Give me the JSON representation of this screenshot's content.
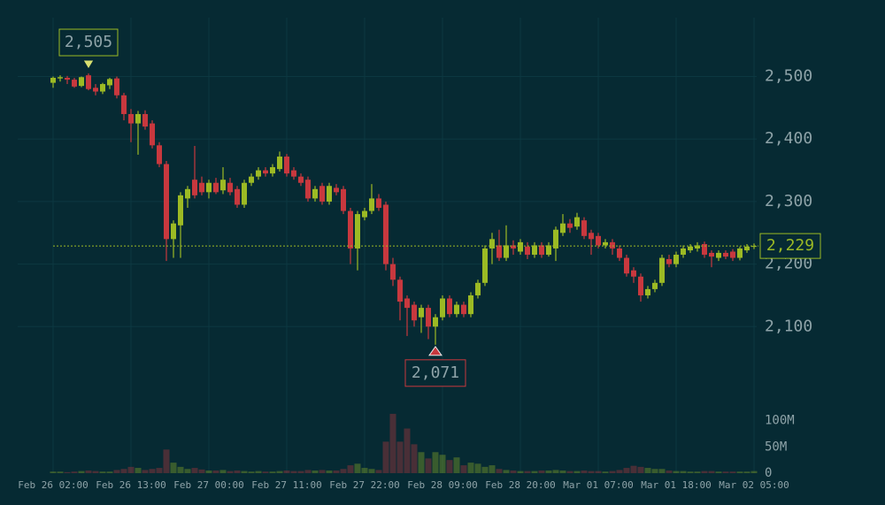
{
  "chart_data": {
    "type": "candlestick",
    "categories": [
      "Feb 26 02:00",
      null,
      null,
      null,
      null,
      null,
      null,
      null,
      null,
      null,
      null,
      "Feb 26 13:00",
      null,
      null,
      null,
      null,
      null,
      null,
      null,
      null,
      null,
      null,
      "Feb 27 00:00",
      null,
      null,
      null,
      null,
      null,
      null,
      null,
      null,
      null,
      null,
      "Feb 27 11:00",
      null,
      null,
      null,
      null,
      null,
      null,
      null,
      null,
      null,
      null,
      "Feb 27 22:00",
      null,
      null,
      null,
      null,
      null,
      null,
      null,
      null,
      null,
      null,
      "Feb 28 09:00",
      null,
      null,
      null,
      null,
      null,
      null,
      null,
      null,
      null,
      null,
      "Feb 28 20:00",
      null,
      null,
      null,
      null,
      null,
      null,
      null,
      null,
      null,
      null,
      "Mar 01 07:00",
      null,
      null,
      null,
      null,
      null,
      null,
      null,
      null,
      null,
      null,
      "Mar 01 18:00",
      null,
      null,
      null,
      null,
      null,
      null,
      null,
      null,
      null,
      null,
      "Mar 02 05:00"
    ],
    "ohlc": [
      [
        2490,
        2500,
        2482,
        2498
      ],
      [
        2497,
        2502,
        2492,
        2499
      ],
      [
        2498,
        2501,
        2488,
        2495
      ],
      [
        2495,
        2498,
        2482,
        2484
      ],
      [
        2485,
        2500,
        2483,
        2499
      ],
      [
        2502,
        2505,
        2478,
        2480
      ],
      [
        2482,
        2488,
        2470,
        2476
      ],
      [
        2476,
        2490,
        2472,
        2488
      ],
      [
        2486,
        2498,
        2480,
        2496
      ],
      [
        2497,
        2500,
        2465,
        2470
      ],
      [
        2470,
        2474,
        2430,
        2440
      ],
      [
        2440,
        2448,
        2395,
        2425
      ],
      [
        2425,
        2445,
        2375,
        2440
      ],
      [
        2440,
        2446,
        2415,
        2420
      ],
      [
        2425,
        2430,
        2385,
        2390
      ],
      [
        2390,
        2395,
        2355,
        2360
      ],
      [
        2360,
        2365,
        2205,
        2240
      ],
      [
        2240,
        2270,
        2210,
        2265
      ],
      [
        2262,
        2315,
        2210,
        2310
      ],
      [
        2305,
        2325,
        2290,
        2320
      ],
      [
        2335,
        2389,
        2305,
        2310
      ],
      [
        2330,
        2340,
        2310,
        2315
      ],
      [
        2315,
        2335,
        2305,
        2330
      ],
      [
        2330,
        2338,
        2312,
        2315
      ],
      [
        2318,
        2355,
        2312,
        2335
      ],
      [
        2330,
        2338,
        2310,
        2315
      ],
      [
        2320,
        2325,
        2290,
        2295
      ],
      [
        2295,
        2335,
        2290,
        2330
      ],
      [
        2330,
        2345,
        2325,
        2340
      ],
      [
        2340,
        2355,
        2335,
        2350
      ],
      [
        2350,
        2355,
        2340,
        2345
      ],
      [
        2345,
        2360,
        2340,
        2355
      ],
      [
        2352,
        2380,
        2348,
        2372
      ],
      [
        2372,
        2376,
        2340,
        2345
      ],
      [
        2350,
        2355,
        2335,
        2340
      ],
      [
        2340,
        2345,
        2325,
        2330
      ],
      [
        2335,
        2340,
        2300,
        2305
      ],
      [
        2305,
        2325,
        2300,
        2320
      ],
      [
        2325,
        2330,
        2295,
        2300
      ],
      [
        2300,
        2330,
        2295,
        2325
      ],
      [
        2322,
        2328,
        2310,
        2315
      ],
      [
        2320,
        2325,
        2280,
        2285
      ],
      [
        2285,
        2290,
        2200,
        2225
      ],
      [
        2225,
        2285,
        2190,
        2280
      ],
      [
        2275,
        2290,
        2270,
        2285
      ],
      [
        2285,
        2328,
        2280,
        2305
      ],
      [
        2305,
        2312,
        2285,
        2290
      ],
      [
        2295,
        2300,
        2190,
        2200
      ],
      [
        2200,
        2210,
        2165,
        2175
      ],
      [
        2175,
        2180,
        2110,
        2140
      ],
      [
        2145,
        2150,
        2085,
        2130
      ],
      [
        2135,
        2140,
        2100,
        2110
      ],
      [
        2115,
        2135,
        2090,
        2130
      ],
      [
        2130,
        2135,
        2080,
        2100
      ],
      [
        2100,
        2120,
        2071,
        2115
      ],
      [
        2115,
        2150,
        2110,
        2145
      ],
      [
        2145,
        2150,
        2115,
        2120
      ],
      [
        2120,
        2140,
        2115,
        2135
      ],
      [
        2135,
        2140,
        2115,
        2120
      ],
      [
        2120,
        2155,
        2115,
        2150
      ],
      [
        2150,
        2175,
        2145,
        2170
      ],
      [
        2170,
        2230,
        2165,
        2225
      ],
      [
        2225,
        2250,
        2200,
        2240
      ],
      [
        2230,
        2255,
        2205,
        2210
      ],
      [
        2210,
        2262,
        2205,
        2230
      ],
      [
        2230,
        2238,
        2215,
        2225
      ],
      [
        2220,
        2240,
        2215,
        2235
      ],
      [
        2228,
        2235,
        2208,
        2215
      ],
      [
        2215,
        2235,
        2210,
        2230
      ],
      [
        2230,
        2235,
        2210,
        2215
      ],
      [
        2215,
        2235,
        2212,
        2230
      ],
      [
        2225,
        2260,
        2205,
        2255
      ],
      [
        2250,
        2280,
        2245,
        2265
      ],
      [
        2265,
        2272,
        2250,
        2258
      ],
      [
        2260,
        2282,
        2255,
        2275
      ],
      [
        2270,
        2275,
        2240,
        2245
      ],
      [
        2250,
        2255,
        2215,
        2240
      ],
      [
        2245,
        2250,
        2225,
        2230
      ],
      [
        2230,
        2240,
        2225,
        2235
      ],
      [
        2235,
        2240,
        2215,
        2225
      ],
      [
        2225,
        2230,
        2205,
        2210
      ],
      [
        2210,
        2215,
        2180,
        2185
      ],
      [
        2190,
        2195,
        2170,
        2180
      ],
      [
        2180,
        2185,
        2140,
        2150
      ],
      [
        2150,
        2165,
        2145,
        2160
      ],
      [
        2160,
        2175,
        2155,
        2170
      ],
      [
        2170,
        2215,
        2165,
        2210
      ],
      [
        2208,
        2215,
        2195,
        2200
      ],
      [
        2200,
        2220,
        2195,
        2215
      ],
      [
        2215,
        2230,
        2210,
        2225
      ],
      [
        2222,
        2232,
        2218,
        2228
      ],
      [
        2225,
        2235,
        2220,
        2230
      ],
      [
        2232,
        2236,
        2210,
        2215
      ],
      [
        2218,
        2222,
        2195,
        2212
      ],
      [
        2210,
        2222,
        2205,
        2218
      ],
      [
        2218,
        2222,
        2208,
        2212
      ],
      [
        2220,
        2224,
        2205,
        2210
      ],
      [
        2210,
        2228,
        2206,
        2225
      ],
      [
        2222,
        2232,
        2218,
        2228
      ],
      [
        2228,
        2233,
        2224,
        2229
      ]
    ],
    "volume": [
      3000000,
      3000000,
      2000000,
      3000000,
      4000000,
      5000000,
      4000000,
      3000000,
      3000000,
      6000000,
      8000000,
      12000000,
      10000000,
      6000000,
      8000000,
      10000000,
      45000000,
      20000000,
      12000000,
      8000000,
      10000000,
      7000000,
      5000000,
      5000000,
      6000000,
      4000000,
      5000000,
      4000000,
      3000000,
      4000000,
      3000000,
      3000000,
      4000000,
      5000000,
      4000000,
      4000000,
      6000000,
      5000000,
      6000000,
      5000000,
      5000000,
      8000000,
      15000000,
      18000000,
      10000000,
      8000000,
      6000000,
      60000000,
      113000000,
      60000000,
      85000000,
      55000000,
      40000000,
      28000000,
      40000000,
      35000000,
      25000000,
      30000000,
      15000000,
      20000000,
      18000000,
      12000000,
      15000000,
      8000000,
      6000000,
      5000000,
      4000000,
      4000000,
      4000000,
      5000000,
      5000000,
      6000000,
      5000000,
      4000000,
      4000000,
      5000000,
      4000000,
      4000000,
      3000000,
      4000000,
      6000000,
      10000000,
      14000000,
      12000000,
      10000000,
      8000000,
      8000000,
      5000000,
      4000000,
      4000000,
      3000000,
      3000000,
      4000000,
      4000000,
      3000000,
      3000000,
      3000000,
      3000000,
      3000000,
      4000000
    ],
    "up_color": "#9cba24",
    "down_color": "#c8383e",
    "ylim": [
      2000,
      2580
    ],
    "yticks": [
      {
        "value": 2100,
        "label": "2,100"
      },
      {
        "value": 2200,
        "label": "2,200"
      },
      {
        "value": 2300,
        "label": "2,300"
      },
      {
        "value": 2400,
        "label": "2,400"
      },
      {
        "value": 2500,
        "label": "2,500"
      }
    ],
    "y2lim": [
      0,
      160000000
    ],
    "y2ticks": [
      0,
      {
        "value": 50000000,
        "label": "50M"
      },
      {
        "value": 100000000,
        "label": "100M"
      }
    ],
    "grid": true,
    "high_label": {
      "value": 2505,
      "label": "2,505"
    },
    "low_label": {
      "value": 2071,
      "label": "2,071"
    },
    "last_price": {
      "value": 2229,
      "label": "2,229"
    }
  }
}
